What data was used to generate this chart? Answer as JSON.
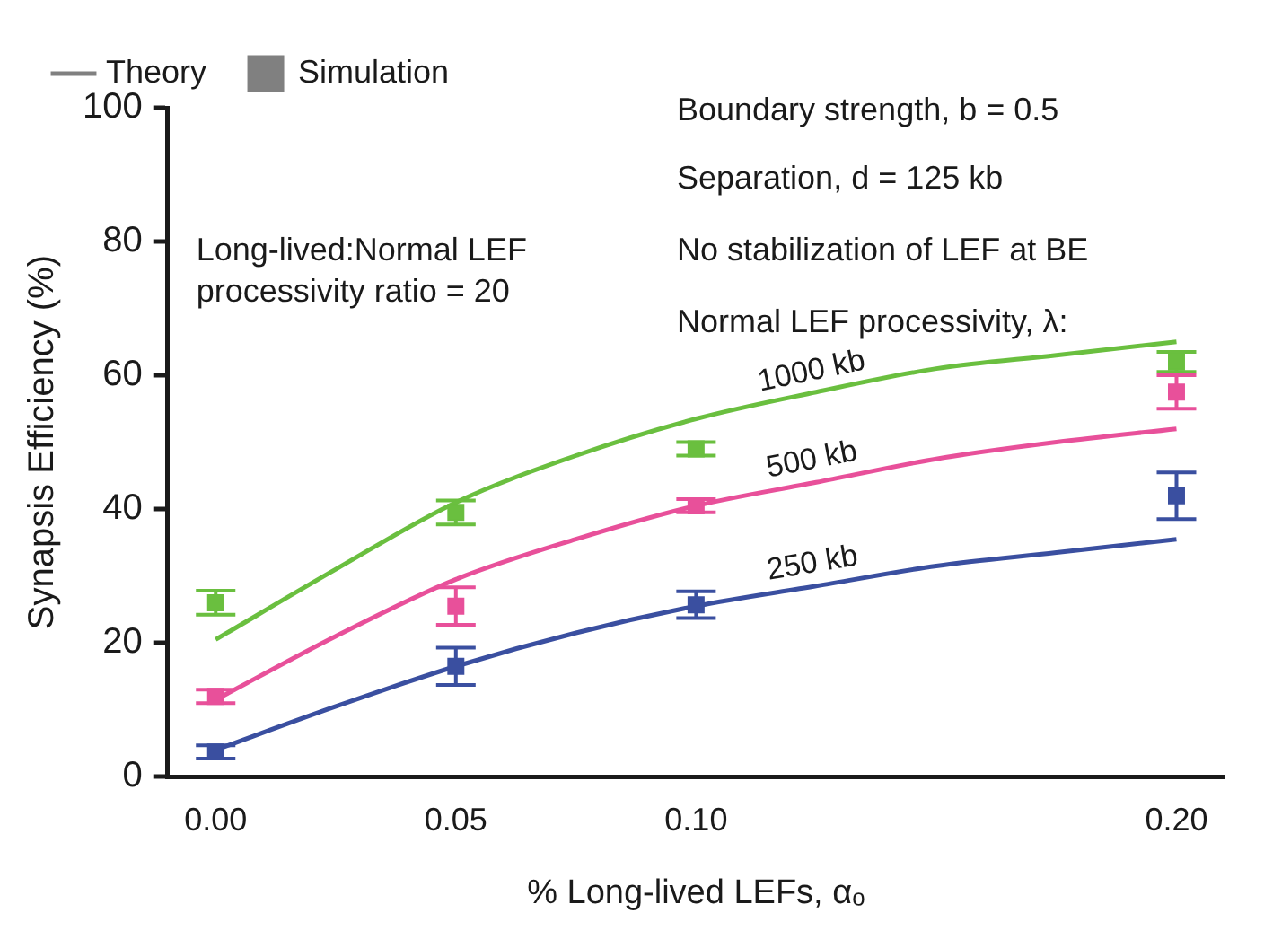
{
  "chart_data": {
    "type": "line",
    "xlabel": "% Long-lived LEFs, αₒ",
    "ylabel": "Synapsis Efficiency (%)",
    "xlim": [
      -0.01,
      0.21
    ],
    "xticks": [
      {
        "value": 0,
        "label": "0.00"
      },
      {
        "value": 0.05,
        "label": "0.05"
      },
      {
        "value": 0.1,
        "label": "0.10"
      },
      {
        "value": 0.2,
        "label": "0.20"
      }
    ],
    "ylim": [
      0,
      100
    ],
    "yticks": [
      0,
      20,
      40,
      60,
      80,
      100
    ],
    "grid": false,
    "legend": "top left",
    "line_style": "solid",
    "annotations": [
      "Boundary strength, b = 0.5",
      "Separation, d = 125 kb",
      "No stabilization of LEF at BE",
      "Normal LEF processivity, λ:",
      "Long-lived:Normal LEF processivity ratio = 20"
    ],
    "series": [
      {
        "name": "Theory",
        "color": "#808080"
      },
      {
        "name": "Simulation",
        "type": "scatter",
        "marker": "square",
        "color": "#808080"
      },
      {
        "name": "1000 kb",
        "color": "#6abf3f",
        "x": [
          0,
          0.025,
          0.05,
          0.075,
          0.1,
          0.125,
          0.15,
          0.175,
          0.2
        ],
        "values": [
          20.5,
          31,
          41,
          48,
          53.5,
          57.5,
          61,
          63,
          65
        ]
      },
      {
        "name": "500 kb",
        "color": "#e8509a",
        "x": [
          0,
          0.025,
          0.05,
          0.075,
          0.1,
          0.125,
          0.15,
          0.175,
          0.2
        ],
        "values": [
          11.5,
          21,
          29.5,
          35.5,
          40.5,
          44,
          47.5,
          50,
          52
        ]
      },
      {
        "name": "250 kb",
        "color": "#3a4fa0",
        "x": [
          0,
          0.025,
          0.05,
          0.075,
          0.1,
          0.125,
          0.15,
          0.175,
          0.2
        ],
        "values": [
          4,
          10.5,
          16.5,
          21.5,
          25.5,
          28.5,
          31.5,
          33.5,
          35.5
        ]
      },
      {
        "type": "scatter",
        "marker": "square",
        "color": "#6abf3f",
        "x": [
          0,
          0.05,
          0.1,
          0.2
        ],
        "values": [
          26,
          39.5,
          49,
          62
        ],
        "errors": [
          1.8,
          1.8,
          1,
          1.5
        ]
      },
      {
        "type": "scatter",
        "marker": "square",
        "color": "#e8509a",
        "x": [
          0,
          0.05,
          0.1,
          0.2
        ],
        "values": [
          12,
          25.5,
          40.5,
          57.5
        ],
        "errors": [
          1,
          2.8,
          1,
          2.5
        ]
      },
      {
        "type": "scatter",
        "marker": "square",
        "color": "#3a4fa0",
        "x": [
          0,
          0.05,
          0.1,
          0.2
        ],
        "values": [
          3.7,
          16.5,
          25.7,
          42
        ],
        "errors": [
          1,
          2.8,
          2,
          3.5
        ]
      }
    ]
  }
}
